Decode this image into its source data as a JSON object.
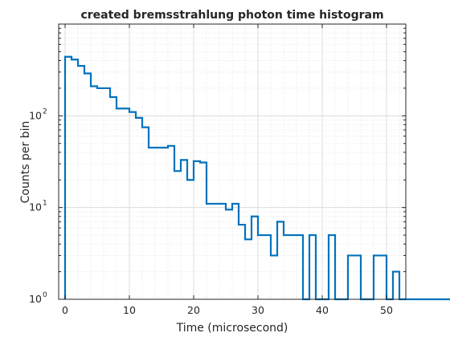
{
  "chart_data": {
    "type": "line",
    "style": "stairs",
    "title": "created bremsstrahlung photon time histogram",
    "xlabel": "Time (microsecond)",
    "ylabel": "Counts per bin",
    "xlim": [
      -1,
      53
    ],
    "ylim": [
      1,
      1000
    ],
    "yscale": "log",
    "grid": true,
    "minor_grid": true,
    "color": "#0072BD",
    "x_ticks": [
      0,
      10,
      20,
      30,
      40,
      50
    ],
    "x_tick_labels": [
      "0",
      "10",
      "20",
      "30",
      "40",
      "50"
    ],
    "y_ticks": [
      1,
      10,
      100
    ],
    "y_tick_labels": [
      {
        "base": "10",
        "exp": "0"
      },
      {
        "base": "10",
        "exp": "1"
      },
      {
        "base": "10",
        "exp": "2"
      }
    ],
    "bin_width": 1,
    "bin_edges_start": 0,
    "values": [
      440,
      410,
      350,
      290,
      210,
      200,
      200,
      160,
      120,
      120,
      110,
      95,
      75,
      45,
      45,
      45,
      47,
      25,
      33,
      20,
      32,
      31,
      11,
      11,
      11,
      9.5,
      11,
      6.5,
      4.5,
      8,
      5,
      5,
      3,
      7,
      5,
      5,
      5,
      1,
      5,
      1,
      1,
      5,
      1,
      1,
      3,
      3,
      1,
      1,
      3,
      3,
      1,
      2,
      1,
      1,
      1,
      1,
      1,
      1,
      1,
      1,
      1,
      1,
      1,
      1,
      1,
      1,
      1,
      1,
      1,
      1,
      1
    ]
  }
}
